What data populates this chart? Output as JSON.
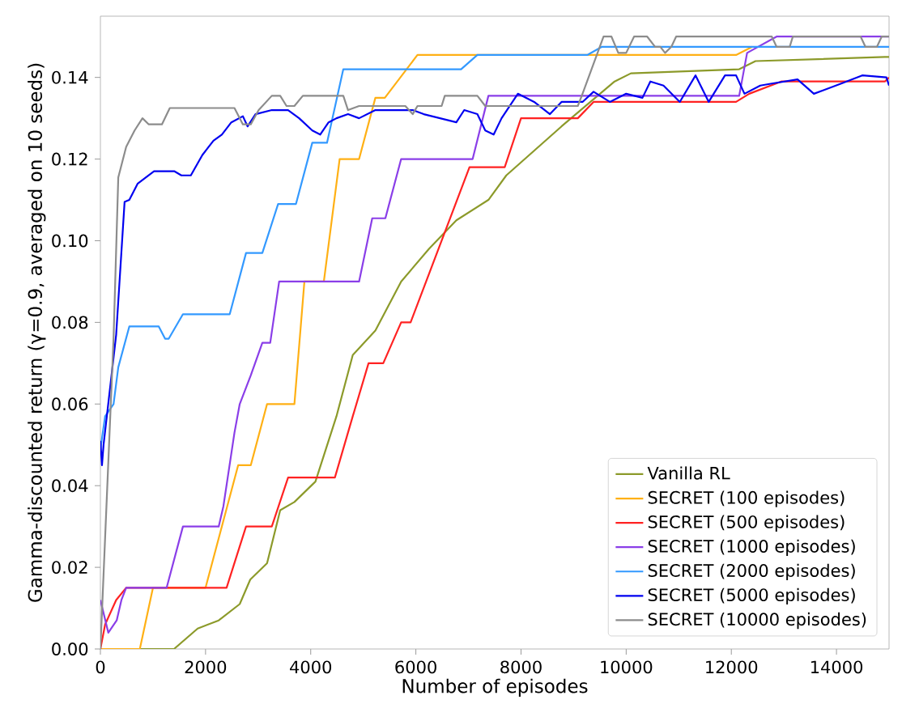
{
  "chart_data": {
    "type": "line",
    "xlabel": "Number of episodes",
    "ylabel": "Gamma-discounted return (γ=0.9, averaged on 10 seeds)",
    "xlim": [
      0,
      15000
    ],
    "ylim": [
      0,
      0.155
    ],
    "xticks": [
      0,
      2000,
      4000,
      6000,
      8000,
      10000,
      12000,
      14000
    ],
    "yticks": [
      {
        "value": 0,
        "label": "0.00"
      },
      {
        "value": 0.02,
        "label": "0.02"
      },
      {
        "value": 0.04,
        "label": "0.04"
      },
      {
        "value": 0.06,
        "label": "0.06"
      },
      {
        "value": 0.08,
        "label": "0.08"
      },
      {
        "value": 0.1,
        "label": "0.10"
      },
      {
        "value": 0.12,
        "label": "0.12"
      },
      {
        "value": 0.14,
        "label": "0.14"
      }
    ],
    "legend": "bottom right",
    "series": [
      {
        "name": "Vanilla RL",
        "color": "#8c9a2a",
        "x": [
          0,
          1400,
          1850,
          2250,
          2650,
          2850,
          3170,
          3420,
          3690,
          4090,
          4490,
          4800,
          5230,
          5720,
          6250,
          6770,
          7380,
          7720,
          8770,
          9780,
          10090,
          12150,
          12460,
          14920,
          15000
        ],
        "values": [
          0,
          0,
          0.005,
          0.007,
          0.011,
          0.017,
          0.021,
          0.034,
          0.036,
          0.041,
          0.057,
          0.072,
          0.078,
          0.09,
          0.098,
          0.105,
          0.11,
          0.116,
          0.128,
          0.139,
          0.141,
          0.142,
          0.144,
          0.145,
          0.145
        ]
      },
      {
        "name": "SECRET (100 episodes)",
        "color": "#ffb014",
        "x": [
          0,
          750,
          1000,
          2000,
          2620,
          2860,
          3170,
          3690,
          3880,
          4250,
          4550,
          4920,
          5230,
          5410,
          6030,
          12090,
          12400
        ],
        "values": [
          0,
          0,
          0.015,
          0.015,
          0.045,
          0.045,
          0.06,
          0.06,
          0.09,
          0.09,
          0.12,
          0.12,
          0.135,
          0.135,
          0.1455,
          0.1455,
          0.1475
        ]
      },
      {
        "name": "SECRET (500 episodes)",
        "color": "#ff2222",
        "x": [
          0,
          90,
          300,
          490,
          2400,
          2770,
          3260,
          3570,
          4460,
          4800,
          5100,
          5380,
          5720,
          5900,
          7020,
          7690,
          8000,
          9080,
          9380,
          12090,
          12340,
          12950,
          14920,
          15000
        ],
        "values": [
          0,
          0.006,
          0.012,
          0.015,
          0.015,
          0.03,
          0.03,
          0.042,
          0.042,
          0.057,
          0.07,
          0.07,
          0.08,
          0.08,
          0.118,
          0.118,
          0.13,
          0.13,
          0.134,
          0.134,
          0.136,
          0.139,
          0.139,
          0.14
        ]
      },
      {
        "name": "SECRET (1000 episodes)",
        "color": "#8a3ee8",
        "x": [
          0,
          150,
          310,
          400,
          490,
          1260,
          1570,
          2250,
          2340,
          2550,
          2650,
          2860,
          3080,
          3230,
          3400,
          4920,
          5170,
          5420,
          5720,
          7080,
          7380,
          12150,
          12300,
          12860,
          15000
        ],
        "values": [
          0.012,
          0.004,
          0.007,
          0.012,
          0.015,
          0.015,
          0.03,
          0.03,
          0.035,
          0.053,
          0.06,
          0.067,
          0.075,
          0.075,
          0.09,
          0.09,
          0.1055,
          0.1055,
          0.12,
          0.12,
          0.1355,
          0.1355,
          0.146,
          0.15,
          0.15
        ]
      },
      {
        "name": "SECRET (2000 episodes)",
        "color": "#3399ff",
        "x": [
          0,
          90,
          250,
          340,
          550,
          1110,
          1230,
          1300,
          1570,
          2460,
          2770,
          3080,
          3380,
          3720,
          4030,
          4310,
          4620,
          6860,
          7170,
          9260,
          9540,
          15000
        ],
        "values": [
          0.049,
          0.057,
          0.06,
          0.069,
          0.079,
          0.079,
          0.076,
          0.076,
          0.082,
          0.082,
          0.097,
          0.097,
          0.109,
          0.109,
          0.124,
          0.124,
          0.142,
          0.142,
          0.1455,
          0.1455,
          0.1475,
          0.1475
        ]
      },
      {
        "name": "SECRET (5000 episodes)",
        "color": "#0000f0",
        "x": [
          0,
          30,
          60,
          300,
          460,
          550,
          710,
          1020,
          1410,
          1540,
          1720,
          1940,
          2150,
          2310,
          2490,
          2710,
          2800,
          2950,
          3260,
          3570,
          3780,
          4030,
          4180,
          4340,
          4490,
          4710,
          4920,
          5230,
          5940,
          6150,
          6460,
          6770,
          6920,
          7170,
          7320,
          7480,
          7630,
          7940,
          8250,
          8550,
          8770,
          9170,
          9380,
          9690,
          10000,
          10310,
          10460,
          10710,
          11020,
          11320,
          11570,
          11880,
          12090,
          12250,
          12550,
          12770,
          13260,
          13570,
          14090,
          14490,
          14950,
          15000
        ],
        "values": [
          0.051,
          0.045,
          0.05,
          0.077,
          0.1095,
          0.11,
          0.114,
          0.117,
          0.117,
          0.116,
          0.116,
          0.121,
          0.1245,
          0.126,
          0.129,
          0.1305,
          0.128,
          0.131,
          0.132,
          0.132,
          0.13,
          0.127,
          0.126,
          0.129,
          0.13,
          0.131,
          0.13,
          0.132,
          0.132,
          0.131,
          0.13,
          0.129,
          0.132,
          0.131,
          0.127,
          0.126,
          0.13,
          0.136,
          0.134,
          0.131,
          0.134,
          0.134,
          0.1365,
          0.134,
          0.136,
          0.135,
          0.139,
          0.138,
          0.134,
          0.1405,
          0.134,
          0.1405,
          0.1405,
          0.136,
          0.138,
          0.1385,
          0.1395,
          0.136,
          0.1385,
          0.1405,
          0.14,
          0.138
        ]
      },
      {
        "name": "SECRET (10000 episodes)",
        "color": "#8c8c8c",
        "x": [
          0,
          250,
          340,
          490,
          650,
          800,
          920,
          1170,
          1320,
          2550,
          2710,
          2860,
          3010,
          3260,
          3420,
          3540,
          3690,
          3850,
          4620,
          4710,
          4920,
          5800,
          5940,
          6030,
          6490,
          6550,
          7170,
          7320,
          9080,
          9170,
          9570,
          9720,
          9850,
          10000,
          10150,
          10400,
          10550,
          10650,
          10740,
          10860,
          10950,
          12770,
          12860,
          13110,
          13170,
          14460,
          14550,
          14770,
          14860,
          15000
        ],
        "values": [
          0,
          0.076,
          0.1155,
          0.123,
          0.127,
          0.13,
          0.1285,
          0.1285,
          0.1325,
          0.1325,
          0.1285,
          0.1285,
          0.132,
          0.1355,
          0.1355,
          0.133,
          0.133,
          0.1355,
          0.1355,
          0.132,
          0.133,
          0.133,
          0.131,
          0.133,
          0.133,
          0.1355,
          0.1355,
          0.133,
          0.133,
          0.136,
          0.15,
          0.15,
          0.146,
          0.146,
          0.15,
          0.15,
          0.1475,
          0.1475,
          0.146,
          0.1475,
          0.15,
          0.15,
          0.1475,
          0.1475,
          0.15,
          0.15,
          0.1475,
          0.1475,
          0.15,
          0.15
        ]
      }
    ]
  }
}
